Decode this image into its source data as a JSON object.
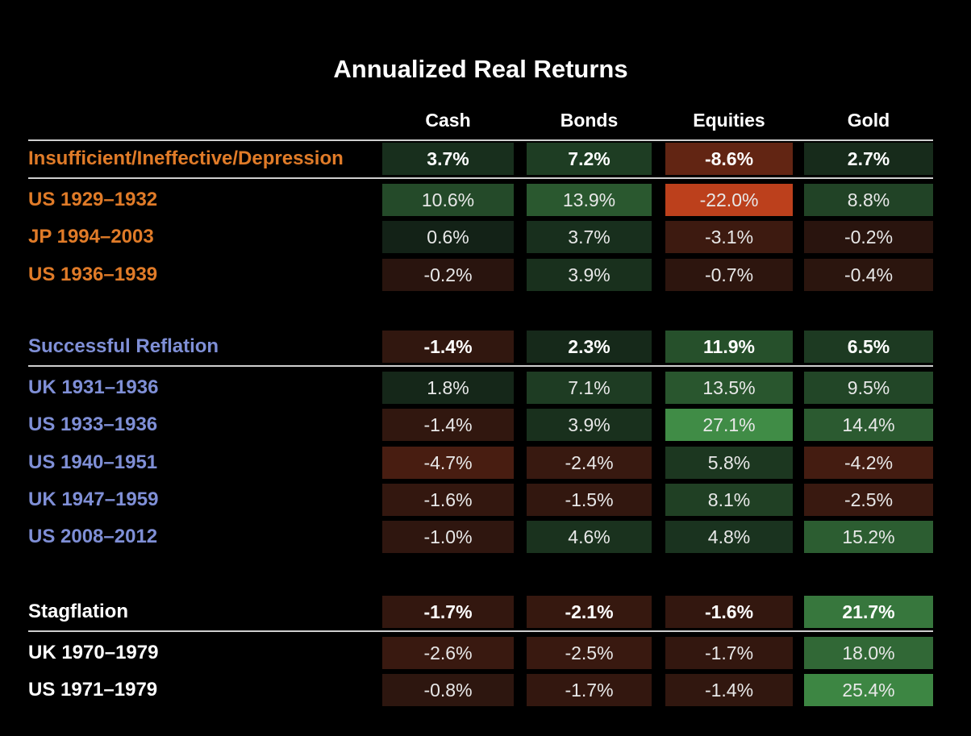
{
  "chart_data": {
    "type": "heatmap",
    "title": "Annualized Real Returns",
    "columns": [
      "Cash",
      "Bonds",
      "Equities",
      "Gold"
    ],
    "colors": {
      "positive": "#3c8a45",
      "negative": "#b8401c",
      "background": "#000000"
    },
    "groups": [
      {
        "label": "Insufficient/Ineffective/Depression",
        "color": "#e07b28",
        "values": [
          "3.7%",
          "7.2%",
          "-8.6%",
          "2.7%"
        ],
        "rows": [
          {
            "label": "US 1929–1932",
            "values": [
              "10.6%",
              "13.9%",
              "-22.0%",
              "8.8%"
            ]
          },
          {
            "label": "JP 1994–2003",
            "values": [
              "0.6%",
              "3.7%",
              "-3.1%",
              "-0.2%"
            ]
          },
          {
            "label": "US 1936–1939",
            "values": [
              "-0.2%",
              "3.9%",
              "-0.7%",
              "-0.4%"
            ]
          }
        ]
      },
      {
        "label": "Successful Reflation",
        "color": "#7f8fd6",
        "values": [
          "-1.4%",
          "2.3%",
          "11.9%",
          "6.5%"
        ],
        "rows": [
          {
            "label": "UK 1931–1936",
            "values": [
              "1.8%",
              "7.1%",
              "13.5%",
              "9.5%"
            ]
          },
          {
            "label": "US 1933–1936",
            "values": [
              "-1.4%",
              "3.9%",
              "27.1%",
              "14.4%"
            ]
          },
          {
            "label": "US 1940–1951",
            "values": [
              "-4.7%",
              "-2.4%",
              "5.8%",
              "-4.2%"
            ]
          },
          {
            "label": "UK 1947–1959",
            "values": [
              "-1.6%",
              "-1.5%",
              "8.1%",
              "-2.5%"
            ]
          },
          {
            "label": "US 2008–2012",
            "values": [
              "-1.0%",
              "4.6%",
              "4.8%",
              "15.2%"
            ]
          }
        ]
      },
      {
        "label": "Stagflation",
        "color": "#ffffff",
        "values": [
          "-1.7%",
          "-2.1%",
          "-1.6%",
          "21.7%"
        ],
        "rows": [
          {
            "label": "UK 1970–1979",
            "values": [
              "-2.6%",
              "-2.5%",
              "-1.7%",
              "18.0%"
            ]
          },
          {
            "label": "US 1971–1979",
            "values": [
              "-0.8%",
              "-1.7%",
              "-1.4%",
              "25.4%"
            ]
          }
        ]
      }
    ]
  }
}
